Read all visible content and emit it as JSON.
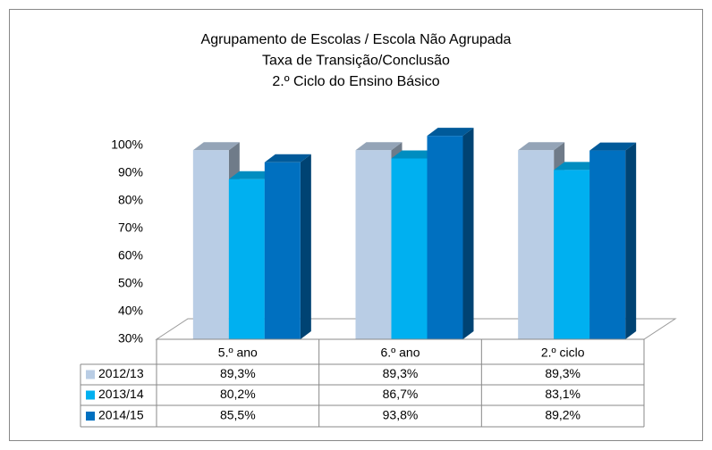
{
  "chart_data": {
    "type": "bar3d",
    "title": [
      "Agrupamento de Escolas / Escola Não Agrupada",
      "Taxa de Transição/Conclusão",
      "2.º Ciclo do Ensino Básico"
    ],
    "categories": [
      "5.º ano",
      "6.º ano",
      "2.º ciclo"
    ],
    "series": [
      {
        "name": "2012/13",
        "color": "#b9cde5",
        "values": [
          89.3,
          89.3,
          89.3
        ],
        "value_labels": [
          "89,3%",
          "89,3%",
          "89,3%"
        ]
      },
      {
        "name": "2013/14",
        "color": "#00b0f0",
        "values": [
          80.2,
          86.7,
          83.1
        ],
        "value_labels": [
          "80,2%",
          "86,7%",
          "83,1%"
        ]
      },
      {
        "name": "2014/15",
        "color": "#0070c0",
        "values": [
          85.5,
          93.8,
          89.2
        ],
        "value_labels": [
          "85,5%",
          "93,8%",
          "89,2%"
        ]
      }
    ],
    "ylim": [
      30,
      100
    ],
    "yticks": [
      {
        "value": 30,
        "label": "30%"
      },
      {
        "value": 40,
        "label": "40%"
      },
      {
        "value": 50,
        "label": "50%"
      },
      {
        "value": 60,
        "label": "60%"
      },
      {
        "value": 70,
        "label": "70%"
      },
      {
        "value": 80,
        "label": "80%"
      },
      {
        "value": 90,
        "label": "90%"
      },
      {
        "value": 100,
        "label": "100%"
      }
    ],
    "data_table": true
  }
}
